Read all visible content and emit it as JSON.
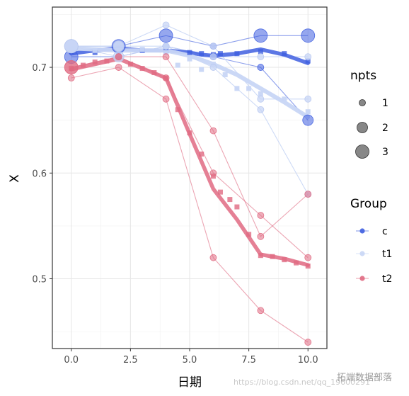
{
  "chart_data": {
    "type": "line",
    "xlabel": "日期",
    "ylabel": "X",
    "xlim": [
      -0.8,
      10.8
    ],
    "ylim": [
      0.434,
      0.757
    ],
    "xticks": [
      0.0,
      2.5,
      5.0,
      7.5,
      10.0
    ],
    "xtick_labels": [
      "0.0",
      "2.5",
      "5.0",
      "7.5",
      "10.0"
    ],
    "yticks": [
      0.5,
      0.6,
      0.7
    ],
    "ytick_labels": [
      "0.5",
      "0.6",
      "0.7"
    ],
    "grid": true,
    "legend_placement": "right",
    "colors": {
      "c": "#3F5FE0",
      "t1": "#C8D6F5",
      "t2": "#E06A82"
    },
    "groups": [
      {
        "name": "c",
        "individuals": [
          {
            "x": [
              0,
              2,
              4,
              6,
              8,
              10
            ],
            "y": [
              0.72,
              0.72,
              0.73,
              0.72,
              0.73,
              0.73
            ],
            "npts": [
              3,
              3,
              3,
              1,
              3,
              3
            ]
          },
          {
            "x": [
              0,
              2,
              4,
              6,
              8,
              10
            ],
            "y": [
              0.71,
              0.71,
              0.72,
              0.71,
              0.7,
              0.65
            ],
            "npts": [
              3,
              1,
              1,
              1,
              1,
              2
            ]
          }
        ],
        "mean": {
          "x": [
            0,
            1,
            2,
            3,
            4,
            5,
            5.5,
            6,
            7,
            8,
            9,
            10
          ],
          "y": [
            0.713,
            0.716,
            0.718,
            0.716,
            0.716,
            0.714,
            0.712,
            0.711,
            0.713,
            0.717,
            0.712,
            0.704
          ]
        },
        "points": {
          "x": [
            0,
            1,
            2,
            3,
            4,
            5,
            5.5,
            6,
            6.3,
            7,
            8,
            9,
            10
          ],
          "y": [
            0.715,
            0.714,
            0.715,
            0.716,
            0.715,
            0.714,
            0.713,
            0.712,
            0.713,
            0.713,
            0.715,
            0.713,
            0.706
          ]
        }
      },
      {
        "name": "t1",
        "individuals": [
          {
            "x": [
              0,
              2,
              4,
              6,
              8,
              10
            ],
            "y": [
              0.72,
              0.72,
              0.74,
              0.72,
              0.67,
              0.67
            ],
            "npts": [
              3,
              2,
              1,
              1,
              1,
              1
            ]
          },
          {
            "x": [
              0,
              2,
              4,
              6,
              8,
              10
            ],
            "y": [
              0.72,
              0.72,
              0.72,
              0.7,
              0.66,
              0.58
            ],
            "npts": [
              3,
              2,
              1,
              1,
              1,
              1
            ]
          },
          {
            "x": [
              0,
              2,
              4,
              6,
              8,
              10
            ],
            "y": [
              0.72,
              0.71,
              0.72,
              0.71,
              0.71,
              0.71
            ],
            "npts": [
              3,
              2,
              1,
              1,
              1,
              1
            ]
          }
        ],
        "mean": {
          "x": [
            0,
            1,
            2,
            3,
            4,
            5,
            6,
            7,
            8,
            9,
            10
          ],
          "y": [
            0.718,
            0.717,
            0.716,
            0.716,
            0.716,
            0.711,
            0.703,
            0.693,
            0.68,
            0.667,
            0.653
          ]
        },
        "points": {
          "x": [
            0,
            1,
            2,
            3,
            4,
            4.5,
            5,
            5.5,
            6,
            6.5,
            7,
            7.5,
            8,
            9,
            10
          ],
          "y": [
            0.717,
            0.716,
            0.716,
            0.717,
            0.714,
            0.702,
            0.708,
            0.698,
            0.703,
            0.693,
            0.68,
            0.68,
            0.675,
            0.67,
            0.658
          ]
        }
      },
      {
        "name": "t2",
        "individuals": [
          {
            "x": [
              0,
              2,
              4,
              6,
              8,
              10
            ],
            "y": [
              0.7,
              0.71,
              0.71,
              0.64,
              0.54,
              0.58
            ],
            "npts": [
              3,
              1,
              1,
              1,
              1,
              1
            ]
          },
          {
            "x": [
              0,
              2,
              4,
              6,
              8,
              10
            ],
            "y": [
              0.7,
              0.71,
              0.69,
              0.6,
              0.56,
              0.52
            ],
            "npts": [
              3,
              1,
              1,
              1,
              1,
              1
            ]
          },
          {
            "x": [
              0,
              2,
              4,
              6,
              8,
              10
            ],
            "y": [
              0.69,
              0.7,
              0.67,
              0.52,
              0.47,
              0.44
            ],
            "npts": [
              1,
              1,
              1,
              1,
              1,
              1
            ]
          }
        ],
        "mean": {
          "x": [
            0,
            2,
            4,
            5,
            6,
            7,
            8,
            9,
            10
          ],
          "y": [
            0.698,
            0.708,
            0.69,
            0.637,
            0.585,
            0.556,
            0.523,
            0.519,
            0.513
          ]
        },
        "points": {
          "x": [
            0,
            0.5,
            1,
            1.5,
            2,
            2.5,
            3,
            3.5,
            4,
            4.5,
            5,
            5.5,
            6,
            6.3,
            6.7,
            7,
            7.5,
            8,
            8.5,
            9,
            9.5,
            10
          ],
          "y": [
            0.699,
            0.702,
            0.705,
            0.706,
            0.708,
            0.703,
            0.699,
            0.695,
            0.69,
            0.66,
            0.638,
            0.618,
            0.597,
            0.582,
            0.575,
            0.568,
            0.542,
            0.522,
            0.521,
            0.518,
            0.515,
            0.512
          ]
        }
      }
    ],
    "legend": {
      "npts_title": "npts",
      "npts_labels": [
        "1",
        "2",
        "3"
      ],
      "group_title": "Group",
      "group_labels": [
        "c",
        "t1",
        "t2"
      ]
    }
  },
  "watermark": {
    "url": "https://blog.csdn.net/qq_19600291",
    "brand": "拓端数据部落"
  }
}
